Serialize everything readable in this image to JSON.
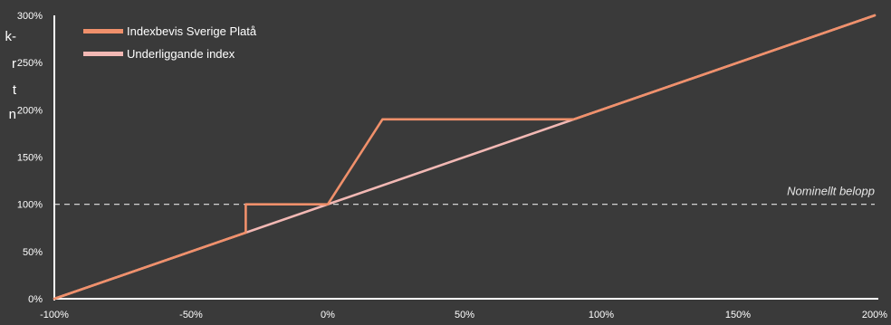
{
  "side_text": {
    "lines": [
      "k-",
      "r",
      "t",
      "n"
    ],
    "color": "#ffffff"
  },
  "chart_data": {
    "type": "line",
    "title": "",
    "xlabel": "",
    "ylabel": "",
    "xlim": [
      -100,
      200
    ],
    "ylim": [
      0,
      300
    ],
    "x_ticks": [
      -100,
      -50,
      0,
      50,
      100,
      150,
      200
    ],
    "x_tick_labels": [
      "-100%",
      "-50%",
      "0%",
      "50%",
      "100%",
      "150%",
      "200%"
    ],
    "y_ticks": [
      0,
      50,
      100,
      150,
      200,
      250,
      300
    ],
    "y_tick_labels": [
      "0%",
      "50%",
      "100%",
      "150%",
      "200%",
      "250%",
      "300%"
    ],
    "grid": false,
    "legend_position": "top-left",
    "series": [
      {
        "name": "Underliggande index",
        "color": "#f2b8b4",
        "points": [
          [
            -100,
            0
          ],
          [
            200,
            300
          ]
        ]
      },
      {
        "name": "Indexbevis Sverige Platå",
        "color": "#f0906b",
        "points": [
          [
            -100,
            0
          ],
          [
            -30,
            70
          ],
          [
            -30,
            100
          ],
          [
            0,
            100
          ],
          [
            20,
            190
          ],
          [
            90,
            190
          ],
          [
            200,
            300
          ]
        ]
      }
    ],
    "reference_line": {
      "y": 100,
      "label": "Nominellt belopp",
      "color": "#e6e6e6"
    },
    "colors": {
      "background": "#3a3a3a",
      "axis": "#ffffff",
      "text": "#ffffff"
    }
  }
}
